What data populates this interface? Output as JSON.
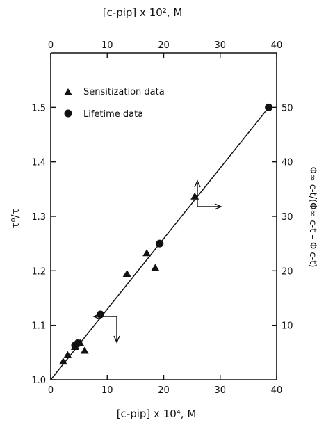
{
  "chart_data": {
    "type": "scatter",
    "x_bottom": {
      "label": "[c-pip] x 10⁴, M",
      "range": [
        0,
        40
      ],
      "ticks": [
        "0",
        "10",
        "20",
        "30",
        "40"
      ]
    },
    "x_top": {
      "label": "[c-pip] x 10², M",
      "range": [
        0,
        40
      ],
      "ticks": [
        "0",
        "10",
        "20",
        "30",
        "40"
      ]
    },
    "y_left": {
      "label": "τ⁰/τ",
      "range": [
        1.0,
        1.6
      ],
      "ticks": [
        "1.0",
        "1.1",
        "1.2",
        "1.3",
        "1.4",
        "1.5"
      ]
    },
    "y_right": {
      "label": "Φ∞ c-t/(Φ∞ c-t – Φ c-t)",
      "range": [
        0,
        60
      ],
      "ticks": [
        "10",
        "20",
        "30",
        "40",
        "50"
      ]
    },
    "series": [
      {
        "name": "Sensitization data",
        "marker": "triangle",
        "axis": "right-top",
        "points": [
          [
            2.2,
            3.3
          ],
          [
            3.0,
            4.5
          ],
          [
            5.2,
            6.7
          ],
          [
            4.3,
            6.0
          ],
          [
            6.0,
            5.3
          ],
          [
            13.5,
            19.4
          ],
          [
            17.0,
            23.2
          ],
          [
            18.5,
            20.5
          ],
          [
            25.5,
            33.6
          ]
        ]
      },
      {
        "name": "Lifetime data",
        "marker": "circle",
        "axis": "left-bottom",
        "points": [
          [
            4.3,
            1.063
          ],
          [
            4.8,
            1.067
          ],
          [
            8.8,
            1.12
          ],
          [
            19.3,
            1.25
          ],
          [
            38.6,
            1.5
          ]
        ]
      }
    ],
    "fit_line": {
      "x": [
        0,
        38.6
      ],
      "y": [
        1.0,
        1.5
      ]
    },
    "legend": {
      "placement": "top-left"
    },
    "grid": false
  }
}
